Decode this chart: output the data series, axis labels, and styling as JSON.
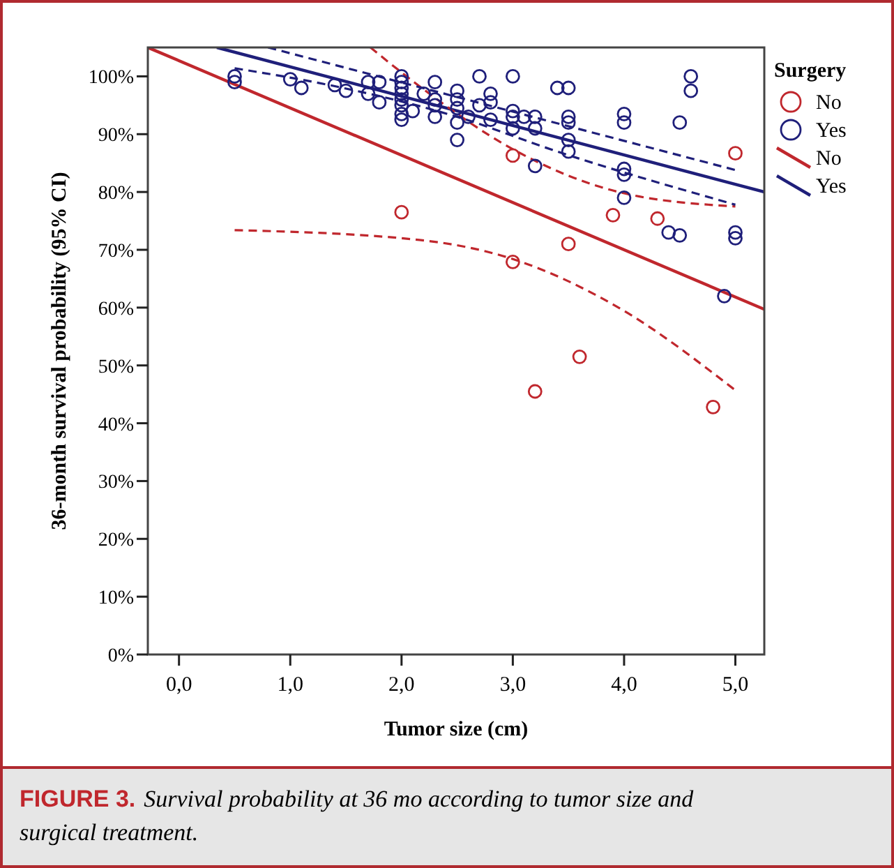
{
  "chart_data": {
    "type": "scatter",
    "xlabel": "Tumor size (cm)",
    "ylabel": "36-month survival probability (95% CI)",
    "legend_title": "Surgery",
    "legend": "right",
    "annotations": [
      "FIGURE 3.",
      "Survival probability at 36 mo according to tumor size and surgical treatment."
    ],
    "xlim": [
      -0.28,
      5.26
    ],
    "ylim": [
      0,
      105
    ],
    "xticks": [
      {
        "value": 0,
        "label": "0,0"
      },
      {
        "value": 1,
        "label": "1,0"
      },
      {
        "value": 2,
        "label": "2,0"
      },
      {
        "value": 3,
        "label": "3,0"
      },
      {
        "value": 4,
        "label": "4,0"
      },
      {
        "value": 5,
        "label": "5,0"
      }
    ],
    "yticks": [
      {
        "value": 0,
        "label": "0%"
      },
      {
        "value": 10,
        "label": "10%"
      },
      {
        "value": 20,
        "label": "20%"
      },
      {
        "value": 30,
        "label": "30%"
      },
      {
        "value": 40,
        "label": "40%"
      },
      {
        "value": 50,
        "label": "50%"
      },
      {
        "value": 60,
        "label": "60%"
      },
      {
        "value": 70,
        "label": "70%"
      },
      {
        "value": 80,
        "label": "80%"
      },
      {
        "value": 90,
        "label": "90%"
      },
      {
        "value": 100,
        "label": "100%"
      }
    ],
    "grid": false,
    "series": [
      {
        "name": "No",
        "marker": "circle",
        "color": "#c0272d",
        "x": [
          2.0,
          3.0,
          3.0,
          3.2,
          3.5,
          3.6,
          3.9,
          4.3,
          4.8,
          5.0
        ],
        "values": [
          76.5,
          86.3,
          67.9,
          45.5,
          71,
          51.5,
          76,
          75.4,
          42.8,
          86.7
        ]
      },
      {
        "name": "Yes",
        "marker": "circle",
        "color": "#1f1f7a",
        "x": [
          0.5,
          0.5,
          1.0,
          1.1,
          1.4,
          1.5,
          1.7,
          1.7,
          1.8,
          1.8,
          2.0,
          2.0,
          2.0,
          2.0,
          2.0,
          2.0,
          2.0,
          2.0,
          2.1,
          2.2,
          2.3,
          2.3,
          2.3,
          2.3,
          2.5,
          2.5,
          2.5,
          2.5,
          2.5,
          2.6,
          2.7,
          2.7,
          2.8,
          2.8,
          2.8,
          3.0,
          3.0,
          3.0,
          3.0,
          3.1,
          3.2,
          3.2,
          3.2,
          3.4,
          3.5,
          3.5,
          3.5,
          3.5,
          3.5,
          4.0,
          4.0,
          4.0,
          4.0,
          4.0,
          4.4,
          4.5,
          4.5,
          4.6,
          4.6,
          4.9,
          5.0,
          5.0
        ],
        "values": [
          100,
          99,
          99.5,
          98,
          98.5,
          97.5,
          99,
          97,
          99,
          95.5,
          100,
          99,
          98,
          97,
          96,
          95,
          93.5,
          92.5,
          94,
          97,
          99,
          96,
          95,
          93,
          97.5,
          96,
          94.5,
          92,
          89,
          93,
          100,
          95,
          97,
          95.5,
          92.5,
          100,
          94,
          93,
          91,
          93,
          93,
          91,
          84.5,
          98,
          98,
          93,
          92,
          89,
          87,
          93.5,
          92,
          84,
          83,
          79,
          73,
          72.5,
          92,
          100,
          97.5,
          62,
          73,
          72
        ]
      },
      {
        "name": "No",
        "type": "line",
        "color": "#c0272d",
        "line_style": "solid",
        "x": [
          -0.28,
          5.26
        ],
        "values": [
          105,
          59.7
        ]
      },
      {
        "name": "Yes",
        "type": "line",
        "color": "#1f1f7a",
        "line_style": "solid",
        "x": [
          0.34,
          5.26
        ],
        "values": [
          105,
          80
        ]
      },
      {
        "type": "line",
        "color": "#c0272d",
        "line_style": "dashed",
        "x": [
          1.72,
          2.16,
          3.0,
          3.95,
          5.0
        ],
        "values": [
          105,
          98.3,
          87.4,
          80,
          77.5
        ]
      },
      {
        "type": "line",
        "color": "#c0272d",
        "line_style": "dashed",
        "x": [
          0.5,
          2.16,
          3.0,
          3.95,
          5.0
        ],
        "values": [
          73.4,
          71.7,
          68.4,
          60,
          45.7
        ]
      },
      {
        "type": "line",
        "color": "#1f1f7a",
        "line_style": "dashed",
        "x": [
          0.8,
          5.0
        ],
        "values": [
          105,
          83.8
        ]
      },
      {
        "type": "line",
        "color": "#1f1f7a",
        "line_style": "dashed",
        "x": [
          0.5,
          1.4,
          2.5,
          3.4,
          5.0
        ],
        "values": [
          101.4,
          98.3,
          93,
          87,
          77.8
        ]
      }
    ]
  }
}
